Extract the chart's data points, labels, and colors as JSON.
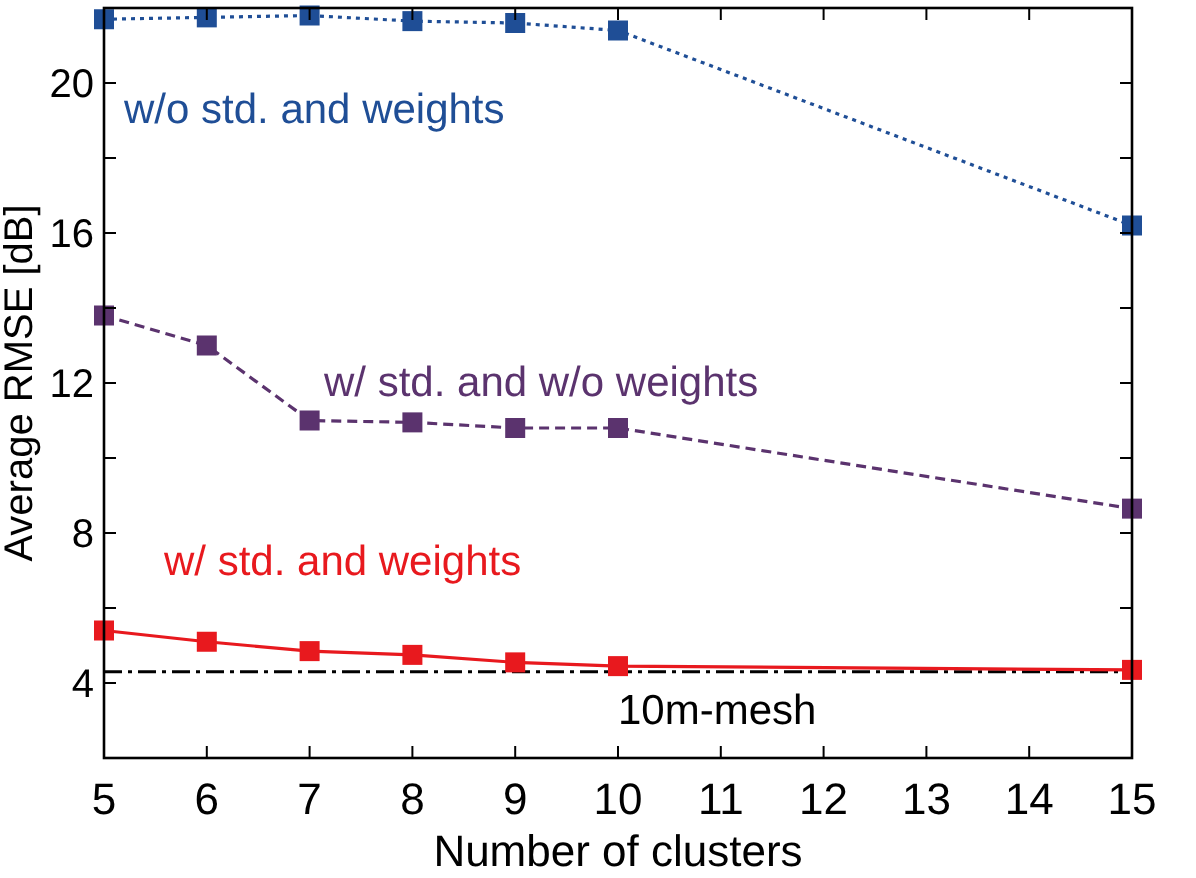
{
  "chart_data": {
    "type": "line",
    "xlabel": "Number of clusters",
    "ylabel": "Average RMSE [dB]",
    "x": [
      5,
      6,
      7,
      8,
      9,
      10,
      15
    ],
    "series": [
      {
        "name": "w/o std. and weights",
        "color": "#1f4e96",
        "line_style": "dotted",
        "values": [
          21.7,
          21.75,
          21.8,
          21.65,
          21.6,
          21.4,
          16.2
        ]
      },
      {
        "name": "w/ std. and w/o weights",
        "color": "#5b336e",
        "line_style": "dashed",
        "values": [
          13.8,
          13.0,
          11.0,
          10.95,
          10.8,
          10.8,
          8.65
        ]
      },
      {
        "name": "w/ std. and weights",
        "color": "#e8191e",
        "line_style": "solid",
        "values": [
          5.4,
          5.1,
          4.85,
          4.75,
          4.55,
          4.45,
          4.35
        ]
      }
    ],
    "marker": "square",
    "grid": false,
    "xlim": [
      5,
      15
    ],
    "xticks": [
      5,
      6,
      7,
      8,
      9,
      10,
      11,
      12,
      13,
      14,
      15
    ],
    "ylim": [
      2,
      22
    ],
    "yticks": [
      {
        "value": 2,
        "label": null
      },
      4,
      {
        "value": 6,
        "label": null
      },
      8,
      {
        "value": 10,
        "label": null
      },
      12,
      {
        "value": 14,
        "label": null
      },
      16,
      {
        "value": 18,
        "label": null
      },
      20
    ],
    "ref_lines": [
      {
        "axis": "y",
        "value": 4.3,
        "label": "10m-mesh",
        "color": "#000000",
        "line_style": "dashdot"
      }
    ]
  }
}
